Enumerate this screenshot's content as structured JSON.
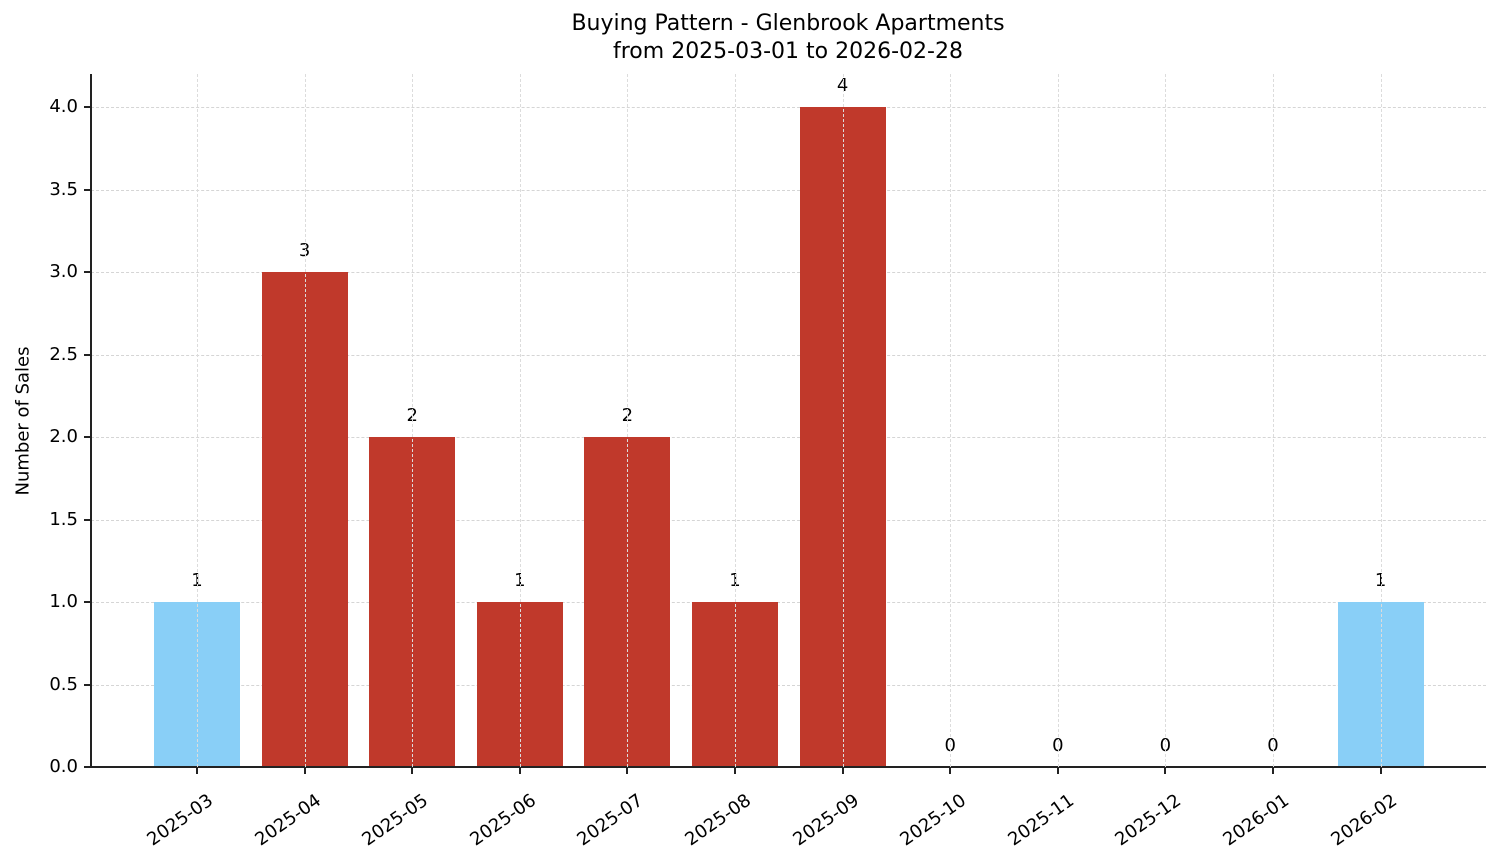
{
  "chart_data": {
    "type": "bar",
    "title": "Buying Pattern - Glenbrook Apartments",
    "subtitle": "from 2025-03-01 to 2026-02-28",
    "xlabel": "",
    "ylabel": "Number of Sales",
    "categories": [
      "2025-03",
      "2025-04",
      "2025-05",
      "2025-06",
      "2025-07",
      "2025-08",
      "2025-09",
      "2025-10",
      "2025-11",
      "2025-12",
      "2026-01",
      "2026-02"
    ],
    "values": [
      1,
      3,
      2,
      1,
      2,
      1,
      4,
      0,
      0,
      0,
      0,
      1
    ],
    "bar_colors": [
      "#89CFF7",
      "#C0392B",
      "#C0392B",
      "#C0392B",
      "#C0392B",
      "#C0392B",
      "#C0392B",
      "#C0392B",
      "#C0392B",
      "#C0392B",
      "#C0392B",
      "#89CFF7"
    ],
    "data_labels": [
      "1",
      "3",
      "2",
      "1",
      "2",
      "1",
      "4",
      "0",
      "0",
      "0",
      "0",
      "1"
    ],
    "yticks": [
      "0.0",
      "0.5",
      "1.0",
      "1.5",
      "2.0",
      "2.5",
      "3.0",
      "3.5",
      "4.0"
    ],
    "ylim": [
      0,
      4.2
    ],
    "grid": true,
    "legend": null
  }
}
